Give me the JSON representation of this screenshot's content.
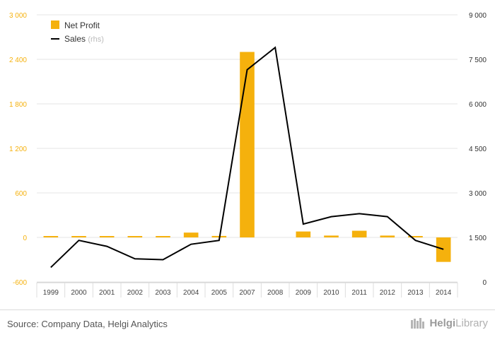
{
  "chart_data": {
    "type": "bar",
    "categories": [
      "1999",
      "2000",
      "2001",
      "2002",
      "2003",
      "2004",
      "2005",
      "2007",
      "2008",
      "2009",
      "2010",
      "2011",
      "2012",
      "2013",
      "2014"
    ],
    "series": [
      {
        "name": "Net Profit",
        "kind": "bar",
        "axis": "left",
        "color": "#f5b10d",
        "values": [
          10,
          10,
          3,
          2,
          8,
          65,
          20,
          2500,
          0,
          80,
          25,
          90,
          25,
          10,
          -330
        ]
      },
      {
        "name": "Sales",
        "label_suffix": "(rhs)",
        "kind": "line",
        "axis": "right",
        "color": "#000000",
        "values": [
          490,
          1400,
          1200,
          780,
          750,
          1270,
          1400,
          7150,
          7900,
          1950,
          2200,
          2300,
          2200,
          1400,
          1100
        ]
      }
    ],
    "y_left": {
      "min": -600,
      "max": 3000,
      "ticks": [
        -600,
        0,
        600,
        1200,
        1800,
        2400,
        3000
      ],
      "tick_labels": [
        "-600",
        "0",
        "600",
        "1 200",
        "1 800",
        "2 400",
        "3 000"
      ],
      "color": "#f5b10d"
    },
    "y_right": {
      "min": 0,
      "max": 9000,
      "ticks": [
        0,
        1500,
        3000,
        4500,
        6000,
        7500,
        9000
      ],
      "tick_labels": [
        "0",
        "1 500",
        "3 000",
        "4 500",
        "6 000",
        "7 500",
        "9 000"
      ],
      "color": "#333333"
    },
    "legend_position": "top-left",
    "grid": "horizontal"
  },
  "footer": {
    "source": "Source: Company Data, Helgi Analytics",
    "brand_part1": "Helgi",
    "brand_part2": "Library",
    "brand_icon": "library-books-icon"
  }
}
